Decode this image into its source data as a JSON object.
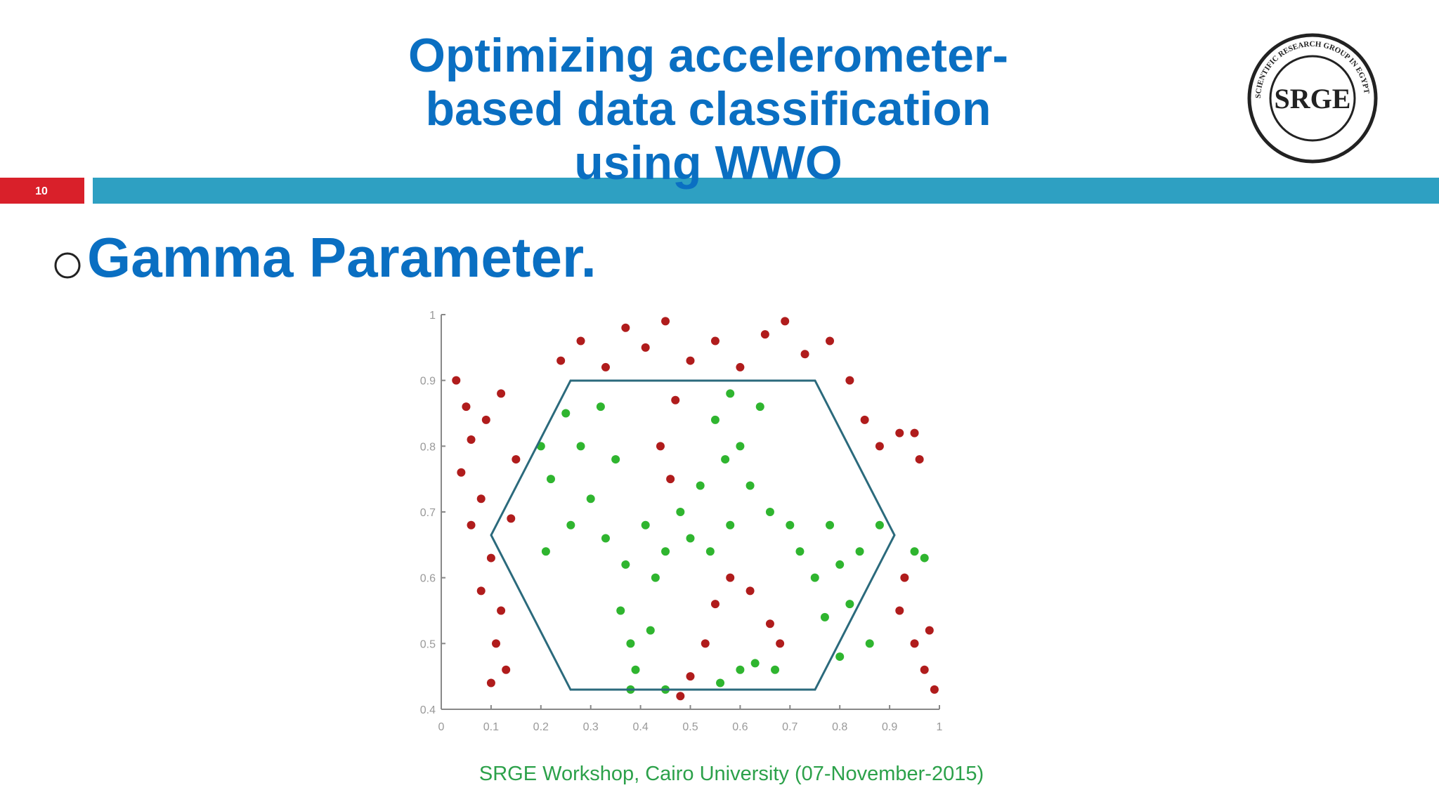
{
  "slide": {
    "title_lines": [
      "Optimizing accelerometer-",
      "based data classification",
      "using WWO"
    ],
    "slide_number": "10",
    "bullet": "Gamma Parameter.",
    "footer": "SRGE Workshop, Cairo University (07-November-2015)",
    "logo": {
      "text": "SRGE",
      "ring_text": "SCIENTIFIC RESEARCH GROUP IN EGYPT"
    }
  },
  "chart_data": {
    "type": "scatter",
    "xlim": [
      0,
      1
    ],
    "ylim": [
      0.4,
      1
    ],
    "xticks": [
      0,
      0.1,
      0.2,
      0.3,
      0.4,
      0.5,
      0.6,
      0.7,
      0.8,
      0.9,
      1
    ],
    "yticks": [
      0.4,
      0.5,
      0.6,
      0.7,
      0.8,
      0.9,
      1
    ],
    "series": [
      {
        "color": "#b01c1c",
        "x": [
          0.03,
          0.05,
          0.06,
          0.04,
          0.08,
          0.06,
          0.1,
          0.08,
          0.12,
          0.11,
          0.13,
          0.1,
          0.09,
          0.12,
          0.15,
          0.14,
          0.24,
          0.28,
          0.33,
          0.37,
          0.41,
          0.45,
          0.5,
          0.55,
          0.6,
          0.65,
          0.69,
          0.73,
          0.78,
          0.82,
          0.47,
          0.44,
          0.46,
          0.85,
          0.88,
          0.92,
          0.96,
          0.95,
          0.92,
          0.95,
          0.97,
          0.99,
          0.93,
          0.98,
          0.5,
          0.53,
          0.55,
          0.58,
          0.62,
          0.66,
          0.68,
          0.48
        ],
        "values": [
          0.9,
          0.86,
          0.81,
          0.76,
          0.72,
          0.68,
          0.63,
          0.58,
          0.55,
          0.5,
          0.46,
          0.44,
          0.84,
          0.88,
          0.78,
          0.69,
          0.93,
          0.96,
          0.92,
          0.98,
          0.95,
          0.99,
          0.93,
          0.96,
          0.92,
          0.97,
          0.99,
          0.94,
          0.96,
          0.9,
          0.87,
          0.8,
          0.75,
          0.84,
          0.8,
          0.82,
          0.78,
          0.82,
          0.55,
          0.5,
          0.46,
          0.43,
          0.6,
          0.52,
          0.45,
          0.5,
          0.56,
          0.6,
          0.58,
          0.53,
          0.5,
          0.42
        ]
      },
      {
        "color": "#2fb52f",
        "x": [
          0.2,
          0.22,
          0.25,
          0.28,
          0.3,
          0.26,
          0.21,
          0.32,
          0.35,
          0.33,
          0.37,
          0.36,
          0.38,
          0.39,
          0.41,
          0.43,
          0.42,
          0.45,
          0.48,
          0.5,
          0.52,
          0.55,
          0.58,
          0.57,
          0.6,
          0.62,
          0.64,
          0.66,
          0.58,
          0.54,
          0.7,
          0.72,
          0.75,
          0.78,
          0.8,
          0.82,
          0.84,
          0.86,
          0.8,
          0.77,
          0.6,
          0.63,
          0.67,
          0.56,
          0.45,
          0.38,
          0.88,
          0.95,
          0.97
        ],
        "values": [
          0.8,
          0.75,
          0.85,
          0.8,
          0.72,
          0.68,
          0.64,
          0.86,
          0.78,
          0.66,
          0.62,
          0.55,
          0.5,
          0.46,
          0.68,
          0.6,
          0.52,
          0.64,
          0.7,
          0.66,
          0.74,
          0.84,
          0.88,
          0.78,
          0.8,
          0.74,
          0.86,
          0.7,
          0.68,
          0.64,
          0.68,
          0.64,
          0.6,
          0.68,
          0.62,
          0.56,
          0.64,
          0.5,
          0.48,
          0.54,
          0.46,
          0.47,
          0.46,
          0.44,
          0.43,
          0.43,
          0.68,
          0.64,
          0.63
        ]
      }
    ]
  }
}
